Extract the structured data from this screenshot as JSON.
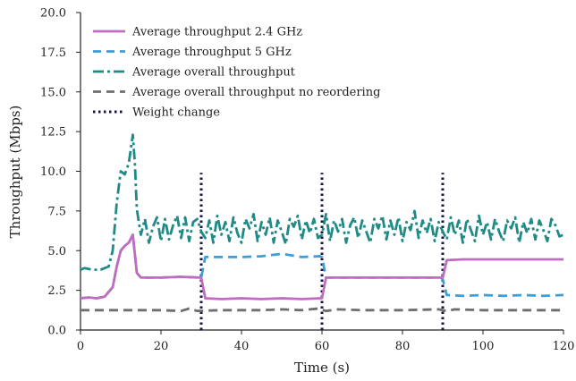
{
  "chart_data": {
    "type": "line",
    "title": "",
    "xlabel": "Time (s)",
    "ylabel": "Throughput (Mbps)",
    "xlim": [
      0,
      120
    ],
    "ylim": [
      0,
      20
    ],
    "x_ticks": [
      "0",
      "20",
      "40",
      "60",
      "80",
      "100",
      "120"
    ],
    "y_ticks": [
      "0.0",
      "2.5",
      "5.0",
      "7.5",
      "10.0",
      "12.5",
      "15.0",
      "17.5",
      "20.0"
    ],
    "grid": false,
    "legend_position": "top-left",
    "series": [
      {
        "name": "Average throughput 2.4 GHz",
        "color": "#c06cc0",
        "style": "solid",
        "points": [
          [
            0,
            2.0
          ],
          [
            2,
            2.05
          ],
          [
            4,
            2.0
          ],
          [
            6,
            2.1
          ],
          [
            8,
            2.7
          ],
          [
            9,
            4.0
          ],
          [
            10,
            5.0
          ],
          [
            11,
            5.3
          ],
          [
            12,
            5.5
          ],
          [
            13,
            6.0
          ],
          [
            14,
            3.6
          ],
          [
            15,
            3.3
          ],
          [
            20,
            3.3
          ],
          [
            25,
            3.35
          ],
          [
            29.5,
            3.3
          ],
          [
            30,
            3.3
          ],
          [
            31,
            2.0
          ],
          [
            35,
            1.95
          ],
          [
            40,
            2.0
          ],
          [
            45,
            1.95
          ],
          [
            50,
            2.0
          ],
          [
            55,
            1.95
          ],
          [
            59.5,
            2.0
          ],
          [
            60,
            2.0
          ],
          [
            61,
            3.3
          ],
          [
            65,
            3.3
          ],
          [
            70,
            3.3
          ],
          [
            75,
            3.3
          ],
          [
            80,
            3.3
          ],
          [
            85,
            3.3
          ],
          [
            89.5,
            3.3
          ],
          [
            90,
            3.3
          ],
          [
            91,
            4.4
          ],
          [
            95,
            4.45
          ],
          [
            100,
            4.45
          ],
          [
            105,
            4.45
          ],
          [
            110,
            4.45
          ],
          [
            115,
            4.45
          ],
          [
            120,
            4.45
          ]
        ]
      },
      {
        "name": "Average throughput 5 GHz",
        "color": "#3e9fd6",
        "style": "dashed",
        "points": [
          [
            0,
            2.0
          ],
          [
            2,
            2.05
          ],
          [
            4,
            2.0
          ],
          [
            6,
            2.1
          ],
          [
            8,
            2.7
          ],
          [
            9,
            4.0
          ],
          [
            10,
            5.0
          ],
          [
            11,
            5.3
          ],
          [
            12,
            5.5
          ],
          [
            13,
            6.0
          ],
          [
            14,
            3.6
          ],
          [
            15,
            3.3
          ],
          [
            20,
            3.3
          ],
          [
            25,
            3.35
          ],
          [
            29.5,
            3.3
          ],
          [
            30,
            3.3
          ],
          [
            31,
            4.6
          ],
          [
            35,
            4.6
          ],
          [
            40,
            4.6
          ],
          [
            45,
            4.65
          ],
          [
            50,
            4.8
          ],
          [
            55,
            4.6
          ],
          [
            59.5,
            4.65
          ],
          [
            60,
            4.6
          ],
          [
            61,
            3.3
          ],
          [
            65,
            3.3
          ],
          [
            70,
            3.3
          ],
          [
            75,
            3.3
          ],
          [
            80,
            3.3
          ],
          [
            85,
            3.3
          ],
          [
            89.5,
            3.3
          ],
          [
            90,
            3.2
          ],
          [
            91,
            2.2
          ],
          [
            95,
            2.15
          ],
          [
            100,
            2.2
          ],
          [
            105,
            2.15
          ],
          [
            110,
            2.2
          ],
          [
            115,
            2.15
          ],
          [
            120,
            2.2
          ]
        ]
      },
      {
        "name": "Average overall throughput",
        "color": "#1f8a86",
        "style": "dashdot",
        "points": [
          [
            0,
            3.8
          ],
          [
            1,
            3.9
          ],
          [
            3,
            3.8
          ],
          [
            5,
            3.8
          ],
          [
            7,
            4.0
          ],
          [
            8,
            5.0
          ],
          [
            9,
            8.0
          ],
          [
            10,
            10.0
          ],
          [
            11,
            9.8
          ],
          [
            12,
            10.5
          ],
          [
            13,
            12.3
          ],
          [
            13.5,
            10.5
          ],
          [
            14,
            7.6
          ],
          [
            15,
            6.0
          ],
          [
            16,
            7.0
          ],
          [
            17,
            5.5
          ],
          [
            18,
            6.5
          ],
          [
            19,
            7.1
          ],
          [
            20,
            5.6
          ],
          [
            21,
            7.0
          ],
          [
            22,
            5.7
          ],
          [
            23,
            6.6
          ],
          [
            24,
            7.2
          ],
          [
            25,
            5.8
          ],
          [
            26,
            7.1
          ],
          [
            27,
            5.6
          ],
          [
            28,
            6.8
          ],
          [
            29,
            7.0
          ],
          [
            30,
            6.2
          ],
          [
            31,
            5.8
          ],
          [
            32,
            6.9
          ],
          [
            33,
            5.5
          ],
          [
            34,
            7.2
          ],
          [
            35,
            6.0
          ],
          [
            36,
            6.8
          ],
          [
            37,
            5.6
          ],
          [
            38,
            7.1
          ],
          [
            39,
            6.1
          ],
          [
            40,
            5.5
          ],
          [
            41,
            7.0
          ],
          [
            42,
            6.4
          ],
          [
            43,
            7.3
          ],
          [
            44,
            5.6
          ],
          [
            45,
            6.8
          ],
          [
            46,
            6.0
          ],
          [
            47,
            7.1
          ],
          [
            48,
            5.5
          ],
          [
            49,
            6.9
          ],
          [
            50,
            6.2
          ],
          [
            51,
            5.4
          ],
          [
            52,
            7.0
          ],
          [
            53,
            6.5
          ],
          [
            54,
            7.2
          ],
          [
            55,
            5.7
          ],
          [
            56,
            6.9
          ],
          [
            57,
            6.1
          ],
          [
            58,
            7.0
          ],
          [
            59,
            5.8
          ],
          [
            60,
            6.0
          ],
          [
            61,
            7.3
          ],
          [
            62,
            5.6
          ],
          [
            63,
            6.9
          ],
          [
            64,
            6.2
          ],
          [
            65,
            7.0
          ],
          [
            66,
            5.5
          ],
          [
            67,
            6.6
          ],
          [
            68,
            7.1
          ],
          [
            69,
            5.8
          ],
          [
            70,
            6.9
          ],
          [
            71,
            6.2
          ],
          [
            72,
            5.5
          ],
          [
            73,
            7.0
          ],
          [
            74,
            6.4
          ],
          [
            75,
            7.2
          ],
          [
            76,
            5.7
          ],
          [
            77,
            6.9
          ],
          [
            78,
            6.0
          ],
          [
            79,
            7.1
          ],
          [
            80,
            5.6
          ],
          [
            81,
            6.8
          ],
          [
            82,
            6.3
          ],
          [
            83,
            7.5
          ],
          [
            84,
            5.8
          ],
          [
            85,
            6.9
          ],
          [
            86,
            6.1
          ],
          [
            87,
            7.0
          ],
          [
            88,
            5.6
          ],
          [
            89,
            6.8
          ],
          [
            90,
            6.2
          ],
          [
            91,
            5.7
          ],
          [
            92,
            7.1
          ],
          [
            93,
            6.0
          ],
          [
            94,
            6.9
          ],
          [
            95,
            5.5
          ],
          [
            96,
            7.0
          ],
          [
            97,
            6.3
          ],
          [
            98,
            5.6
          ],
          [
            99,
            7.2
          ],
          [
            100,
            6.0
          ],
          [
            101,
            6.8
          ],
          [
            102,
            5.7
          ],
          [
            103,
            7.0
          ],
          [
            104,
            6.2
          ],
          [
            105,
            5.6
          ],
          [
            106,
            6.9
          ],
          [
            107,
            6.4
          ],
          [
            108,
            7.1
          ],
          [
            109,
            5.5
          ],
          [
            110,
            6.8
          ],
          [
            111,
            6.1
          ],
          [
            112,
            7.0
          ],
          [
            113,
            5.7
          ],
          [
            114,
            6.9
          ],
          [
            115,
            6.3
          ],
          [
            116,
            5.6
          ],
          [
            117,
            7.0
          ],
          [
            118,
            6.6
          ],
          [
            119,
            5.9
          ],
          [
            120,
            6.0
          ]
        ]
      },
      {
        "name": "Average overall throughput no reordering",
        "color": "#6e6e6e",
        "style": "dashed",
        "points": [
          [
            0,
            1.25
          ],
          [
            10,
            1.25
          ],
          [
            20,
            1.25
          ],
          [
            25,
            1.2
          ],
          [
            27,
            1.35
          ],
          [
            29,
            1.2
          ],
          [
            35,
            1.25
          ],
          [
            45,
            1.25
          ],
          [
            50,
            1.3
          ],
          [
            55,
            1.25
          ],
          [
            59,
            1.35
          ],
          [
            61,
            1.2
          ],
          [
            64,
            1.3
          ],
          [
            70,
            1.25
          ],
          [
            80,
            1.25
          ],
          [
            89,
            1.3
          ],
          [
            91,
            1.2
          ],
          [
            93,
            1.3
          ],
          [
            100,
            1.25
          ],
          [
            110,
            1.25
          ],
          [
            120,
            1.25
          ]
        ]
      },
      {
        "name": "Weight change",
        "color": "#14143c",
        "style": "dotted",
        "x_positions": [
          30,
          60,
          90
        ],
        "y_range": [
          0,
          9.9
        ]
      }
    ]
  }
}
